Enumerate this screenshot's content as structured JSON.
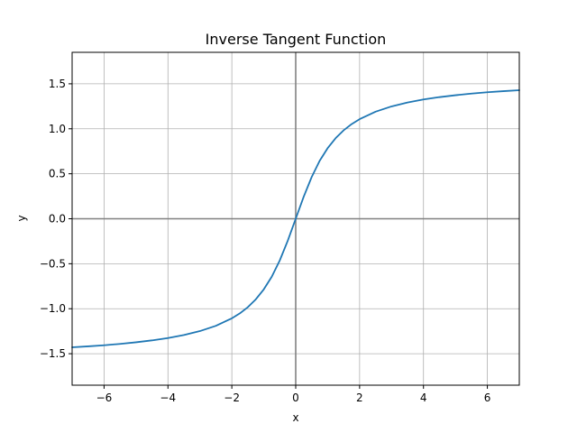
{
  "chart_data": {
    "type": "line",
    "title": "Inverse Tangent Function",
    "xlabel": "x",
    "ylabel": "y",
    "xlim": [
      -7,
      7
    ],
    "ylim": [
      -1.85,
      1.85
    ],
    "x_ticks": [
      -6,
      -4,
      -2,
      0,
      2,
      4,
      6
    ],
    "x_tick_labels": [
      "−6",
      "−4",
      "−2",
      "0",
      "2",
      "4",
      "6"
    ],
    "y_ticks": [
      -1.5,
      -1.0,
      -0.5,
      0.0,
      0.5,
      1.0,
      1.5
    ],
    "y_tick_labels": [
      "−1.5",
      "−1.0",
      "−0.5",
      "0.0",
      "0.5",
      "1.0",
      "1.5"
    ],
    "grid": true,
    "reference_lines": {
      "x": 0,
      "y": 0,
      "color": "#808080"
    },
    "series": [
      {
        "color": "#1f77b4",
        "x": [
          -7,
          -6.5,
          -6,
          -5.5,
          -5,
          -4.5,
          -4,
          -3.5,
          -3,
          -2.5,
          -2,
          -1.75,
          -1.5,
          -1.25,
          -1,
          -0.75,
          -0.5,
          -0.25,
          0,
          0.25,
          0.5,
          0.75,
          1,
          1.25,
          1.5,
          1.75,
          2,
          2.5,
          3,
          3.5,
          4,
          4.5,
          5,
          5.5,
          6,
          6.5,
          7
        ],
        "y": [
          -1.429,
          -1.418,
          -1.406,
          -1.391,
          -1.373,
          -1.352,
          -1.326,
          -1.292,
          -1.249,
          -1.19,
          -1.107,
          -1.052,
          -0.983,
          -0.896,
          -0.785,
          -0.644,
          -0.464,
          -0.245,
          0.0,
          0.245,
          0.464,
          0.644,
          0.785,
          0.896,
          0.983,
          1.052,
          1.107,
          1.19,
          1.249,
          1.292,
          1.326,
          1.352,
          1.373,
          1.391,
          1.406,
          1.418,
          1.429
        ]
      }
    ]
  }
}
